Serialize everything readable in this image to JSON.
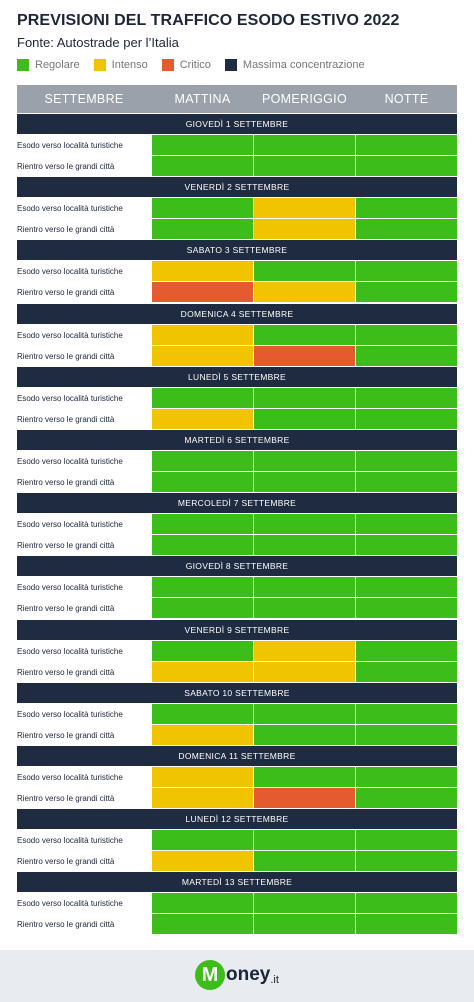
{
  "title": "PREVISIONI DEL TRAFFICO ESODO ESTIVO 2022",
  "subtitle": "Fonte: Autostrade per l’Italia",
  "legend": [
    {
      "label": "Regolare",
      "color": "#3dbd1a"
    },
    {
      "label": "Intenso",
      "color": "#f0c400"
    },
    {
      "label": "Critico",
      "color": "#e55a2e"
    },
    {
      "label": "Massima concentrazione",
      "color": "#1f2b40"
    }
  ],
  "logo": {
    "m": "M",
    "rest": "oney",
    "ext": ".it"
  },
  "chart_data": {
    "type": "table",
    "title": "PREVISIONI DEL TRAFFICO ESODO ESTIVO 2022",
    "subtitle": "Fonte: Autostrade per l’Italia",
    "columns": [
      "SETTEMBRE",
      "MATTINA",
      "POMERIGGIO",
      "NOTTE"
    ],
    "row_labels": [
      "Esodo verso località turistiche",
      "Rientro verso le grandi città"
    ],
    "levels": {
      "R": {
        "label": "Regolare",
        "color": "#3dbd1a"
      },
      "I": {
        "label": "Intenso",
        "color": "#f0c400"
      },
      "C": {
        "label": "Critico",
        "color": "#e55a2e"
      },
      "M": {
        "label": "Massima concentrazione",
        "color": "#1f2b40"
      }
    },
    "days": [
      {
        "day": "GIOVEDÌ 1 SETTEMBRE",
        "rows": [
          [
            "R",
            "R",
            "R"
          ],
          [
            "R",
            "R",
            "R"
          ]
        ]
      },
      {
        "day": "VENERDÌ 2 SETTEMBRE",
        "rows": [
          [
            "R",
            "I",
            "R"
          ],
          [
            "R",
            "I",
            "R"
          ]
        ]
      },
      {
        "day": "SABATO 3 SETTEMBRE",
        "rows": [
          [
            "I",
            "R",
            "R"
          ],
          [
            "C",
            "I",
            "R"
          ]
        ]
      },
      {
        "day": "DOMENICA 4 SETTEMBRE",
        "rows": [
          [
            "I",
            "R",
            "R"
          ],
          [
            "I",
            "C",
            "R"
          ]
        ]
      },
      {
        "day": "LUNEDÌ 5 SETTEMBRE",
        "rows": [
          [
            "R",
            "R",
            "R"
          ],
          [
            "I",
            "R",
            "R"
          ]
        ]
      },
      {
        "day": "MARTEDÌ 6 SETTEMBRE",
        "rows": [
          [
            "R",
            "R",
            "R"
          ],
          [
            "R",
            "R",
            "R"
          ]
        ]
      },
      {
        "day": "MERCOLEDÌ 7 SETTEMBRE",
        "rows": [
          [
            "R",
            "R",
            "R"
          ],
          [
            "R",
            "R",
            "R"
          ]
        ]
      },
      {
        "day": "GIOVEDÌ 8 SETTEMBRE",
        "rows": [
          [
            "R",
            "R",
            "R"
          ],
          [
            "R",
            "R",
            "R"
          ]
        ]
      },
      {
        "day": "VENERDÌ 9 SETTEMBRE",
        "rows": [
          [
            "R",
            "I",
            "R"
          ],
          [
            "I",
            "I",
            "R"
          ]
        ]
      },
      {
        "day": "SABATO 10 SETTEMBRE",
        "rows": [
          [
            "R",
            "R",
            "R"
          ],
          [
            "I",
            "R",
            "R"
          ]
        ]
      },
      {
        "day": "DOMENICA 11 SETTEMBRE",
        "rows": [
          [
            "I",
            "R",
            "R"
          ],
          [
            "I",
            "C",
            "R"
          ]
        ]
      },
      {
        "day": "LUNEDÌ 12 SETTEMBRE",
        "rows": [
          [
            "R",
            "R",
            "R"
          ],
          [
            "I",
            "R",
            "R"
          ]
        ]
      },
      {
        "day": "MARTEDÌ 13 SETTEMBRE",
        "rows": [
          [
            "R",
            "R",
            "R"
          ],
          [
            "R",
            "R",
            "R"
          ]
        ]
      }
    ]
  }
}
